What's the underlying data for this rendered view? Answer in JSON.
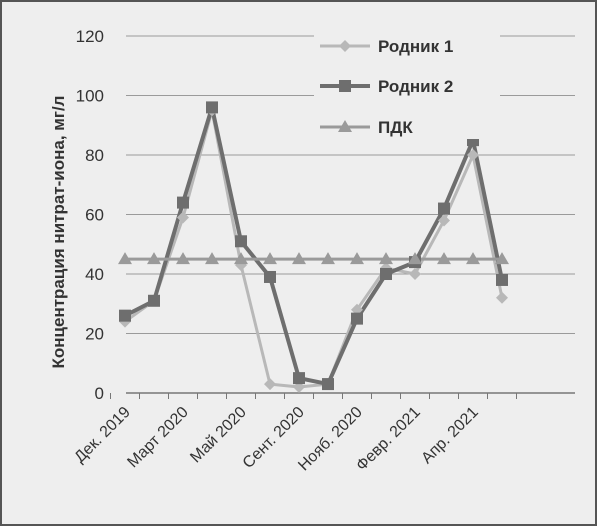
{
  "chart_data": {
    "type": "line",
    "title": "",
    "ylabel": "Концентрация нитрат-иона, мг/л",
    "xlabel": "",
    "ylim": [
      0,
      120
    ],
    "yticks": [
      0,
      20,
      40,
      60,
      80,
      100,
      120
    ],
    "grid": true,
    "legend_position": "top-right",
    "x_tick_labels": [
      "Дек. 2019",
      "Март 2020",
      "Май 2020",
      "Сент. 2020",
      "Нояб. 2020",
      "Февр. 2021",
      "Апр. 2021"
    ],
    "x_tick_label_indices": [
      0,
      2,
      4,
      6,
      8,
      10,
      12
    ],
    "series": [
      {
        "name": "Родник 1",
        "color": "#b8b8b8",
        "marker": "diamond",
        "values": [
          24,
          31,
          59,
          95,
          43,
          3,
          2,
          3,
          28,
          42,
          40,
          58,
          80,
          32
        ]
      },
      {
        "name": "Родник 2",
        "color": "#6e6e6e",
        "marker": "square",
        "values": [
          26,
          31,
          64,
          96,
          51,
          39,
          5,
          3,
          25,
          40,
          44,
          62,
          85,
          38
        ]
      },
      {
        "name": "ПДК",
        "color": "#9a9a9a",
        "marker": "triangle",
        "values": [
          45,
          45,
          45,
          45,
          45,
          45,
          45,
          45,
          45,
          45,
          45,
          45,
          45,
          45
        ]
      }
    ]
  }
}
